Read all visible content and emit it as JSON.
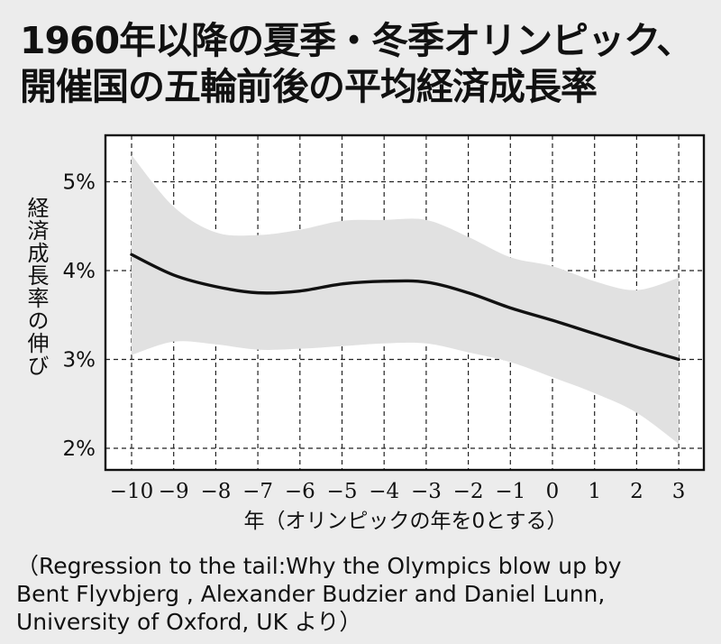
{
  "title_lines": [
    "1960年以降の夏季・冬季オリンピック、",
    "開催国の五輪前後の平均経済成長率"
  ],
  "source_lines": [
    "（Regression to the tail:Why the Olympics blow up by",
    "Bent Flyvbjerg , Alexander Budzier and Daniel Lunn,",
    "University of Oxford, UK より）"
  ],
  "colors": {
    "background": "#ececec",
    "plot_background": "#ffffff",
    "band": "#e1e1e1",
    "line": "#111111",
    "grid": "#222222"
  },
  "chart_data": {
    "type": "line",
    "title": "1960年以降の夏季・冬季オリンピック、開催国の五輪前後の平均経済成長率",
    "xlabel": "年（オリンピックの年を0とする）",
    "ylabel": "経済成長率の伸び",
    "xlim": [
      -10.5,
      3.5
    ],
    "ylim": [
      1.75,
      5.5
    ],
    "x_ticks": [
      -10,
      -9,
      -8,
      -7,
      -6,
      -5,
      -4,
      -3,
      -2,
      -1,
      0,
      1,
      2,
      3
    ],
    "x_tick_labels": [
      "−10",
      "−9",
      "−8",
      "−7",
      "−6",
      "−5",
      "−4",
      "−3",
      "−2",
      "−1",
      "0",
      "1",
      "2",
      "3"
    ],
    "y_ticks": [
      2,
      3,
      4,
      5
    ],
    "y_tick_labels": [
      "2%",
      "3%",
      "4%",
      "5%"
    ],
    "grid": true,
    "grid_style": "dashed",
    "series": [
      {
        "x": [
          -10,
          -9,
          -8,
          -7,
          -6,
          -5,
          -4,
          -3,
          -2,
          -1,
          0,
          1,
          2,
          3
        ],
        "values": [
          4.18,
          3.95,
          3.82,
          3.75,
          3.77,
          3.85,
          3.88,
          3.87,
          3.75,
          3.58,
          3.44,
          3.29,
          3.14,
          3.0
        ]
      }
    ],
    "confidence_band": {
      "x": [
        -10,
        -9,
        -8,
        -7,
        -6,
        -5,
        -4,
        -3,
        -2,
        -1,
        0,
        1,
        2,
        3
      ],
      "upper": [
        5.3,
        4.72,
        4.43,
        4.4,
        4.46,
        4.56,
        4.57,
        4.57,
        4.38,
        4.15,
        4.05,
        3.88,
        3.78,
        3.92
      ],
      "lower": [
        3.05,
        3.2,
        3.17,
        3.11,
        3.12,
        3.15,
        3.18,
        3.18,
        3.08,
        2.97,
        2.8,
        2.62,
        2.4,
        2.05
      ]
    }
  }
}
